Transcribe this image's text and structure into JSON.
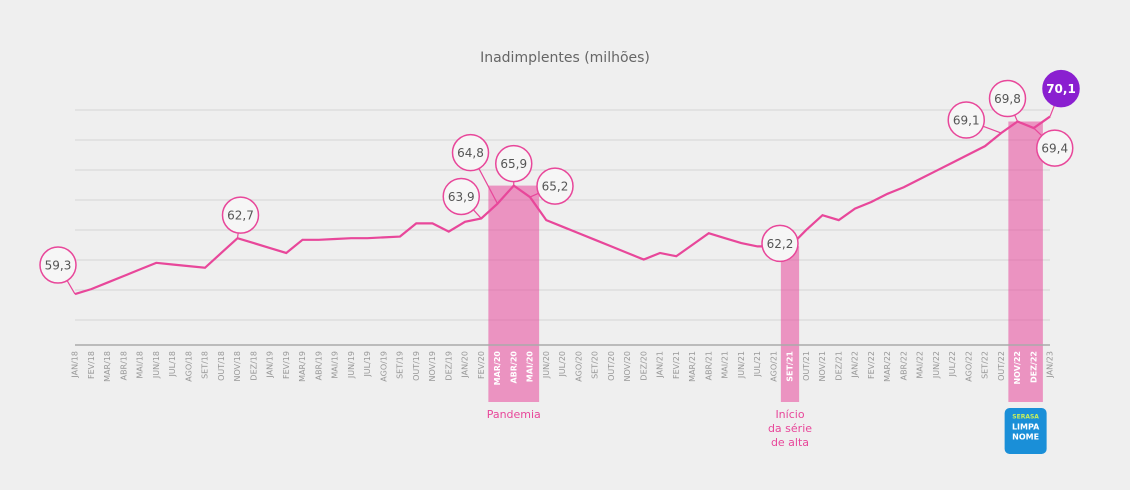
{
  "chart_data": {
    "type": "line",
    "title": "Inadimplentes (milhões)",
    "categories": [
      "JAN/18",
      "FEV/18",
      "MAR/18",
      "ABR/18",
      "MAI/18",
      "JUN/18",
      "JUL/18",
      "AGO/18",
      "SET/18",
      "OUT/18",
      "NOV/18",
      "DEZ/18",
      "JAN/19",
      "FEV/19",
      "MAR/19",
      "ABR/19",
      "MAI/19",
      "JUN/19",
      "JUL/19",
      "AGO/19",
      "SET/19",
      "OUT/19",
      "NOV/19",
      "DEZ/19",
      "JAN/20",
      "FEV/20",
      "MAR/20",
      "ABR/20",
      "MAI/20",
      "JUN/20",
      "JUL/20",
      "AGO/20",
      "SET/20",
      "OUT/20",
      "NOV/20",
      "DEZ/20",
      "JAN/21",
      "FEV/21",
      "MAR/21",
      "ABR/21",
      "MAI/21",
      "JUN/21",
      "JUL/21",
      "AGO/21",
      "SET/21",
      "OUT/21",
      "NOV/21",
      "DEZ/21",
      "JAN/22",
      "FEV/22",
      "MAR/22",
      "ABR/22",
      "MAI/22",
      "JUN/22",
      "JUL/22",
      "AGO/22",
      "SET/22",
      "OUT/22",
      "NOV/22",
      "DEZ/22",
      "JAN/23"
    ],
    "values": [
      59.3,
      59.6,
      60.0,
      60.4,
      60.8,
      61.2,
      61.1,
      61.0,
      60.9,
      61.8,
      62.7,
      62.4,
      62.1,
      61.8,
      62.6,
      62.6,
      62.65,
      62.7,
      62.7,
      62.75,
      62.8,
      63.6,
      63.6,
      63.1,
      63.7,
      63.9,
      64.8,
      65.9,
      65.2,
      63.8,
      63.4,
      63.0,
      62.6,
      62.2,
      61.8,
      61.4,
      61.8,
      61.6,
      62.3,
      63.0,
      62.7,
      62.4,
      62.2,
      62.2,
      62.2,
      63.2,
      64.1,
      63.8,
      64.5,
      64.9,
      65.4,
      65.8,
      66.3,
      66.8,
      67.3,
      67.8,
      68.3,
      69.1,
      69.8,
      69.4,
      70.1
    ],
    "value_labels": [
      "59,3",
      null,
      null,
      null,
      null,
      null,
      null,
      null,
      null,
      null,
      "62,7",
      null,
      null,
      null,
      null,
      null,
      null,
      null,
      null,
      null,
      null,
      null,
      null,
      null,
      null,
      "63,9",
      "64,8",
      "65,9",
      "65,2",
      null,
      null,
      null,
      null,
      null,
      null,
      null,
      null,
      null,
      null,
      null,
      null,
      null,
      null,
      null,
      "62,2",
      null,
      null,
      null,
      null,
      null,
      null,
      null,
      null,
      null,
      null,
      null,
      null,
      "69,1",
      "69,8",
      "69,4",
      "70,1"
    ],
    "color": "#e8479a",
    "highlight_color": "#8a1fd0",
    "ylim": [
      56.2,
      70.5
    ],
    "grid": true,
    "highlights": [
      {
        "from": "MAR/20",
        "to": "MAI/20",
        "label": [
          "Pandemia"
        ]
      },
      {
        "from": "SET/21",
        "to": "SET/21",
        "label": [
          "Início",
          "da série",
          "de alta"
        ]
      },
      {
        "from": "NOV/22",
        "to": "DEZ/22",
        "logo": [
          "SERASA",
          "LIMPA",
          "NOME"
        ]
      }
    ]
  }
}
